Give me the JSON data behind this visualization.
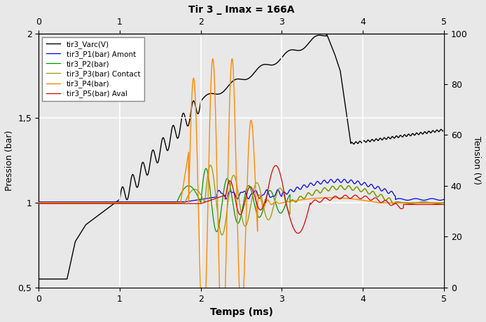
{
  "title": "Tir 3 _ Imax = 166A",
  "xlabel": "Temps (ms)",
  "ylabel_left": "Pression (bar)",
  "ylabel_right": "Tension (V)",
  "xlim": [
    0,
    5
  ],
  "ylim_left": [
    0.5,
    2.0
  ],
  "ylim_right": [
    0,
    100
  ],
  "xticks_top": [
    0,
    1,
    2,
    3,
    4,
    5
  ],
  "xticks_bottom": [
    0,
    1,
    2,
    3,
    4,
    5
  ],
  "yticks_left": [
    0.5,
    1.0,
    1.5,
    2.0
  ],
  "yticks_right": [
    0,
    20,
    40,
    60,
    80,
    100
  ],
  "legend_labels": [
    "tir3_Varc(V)",
    "tir3_P1(bar) Amont",
    "tir3_P2(bar)",
    "tir3_P3(bar) Contact",
    "tir3_P4(bar)",
    "tir3_P5(bar) Aval"
  ],
  "line_colors": [
    "#000000",
    "#0000ee",
    "#009900",
    "#999900",
    "#ff8800",
    "#dd0000"
  ],
  "background_color": "#e8e8e8",
  "grid_color": "#ffffff"
}
